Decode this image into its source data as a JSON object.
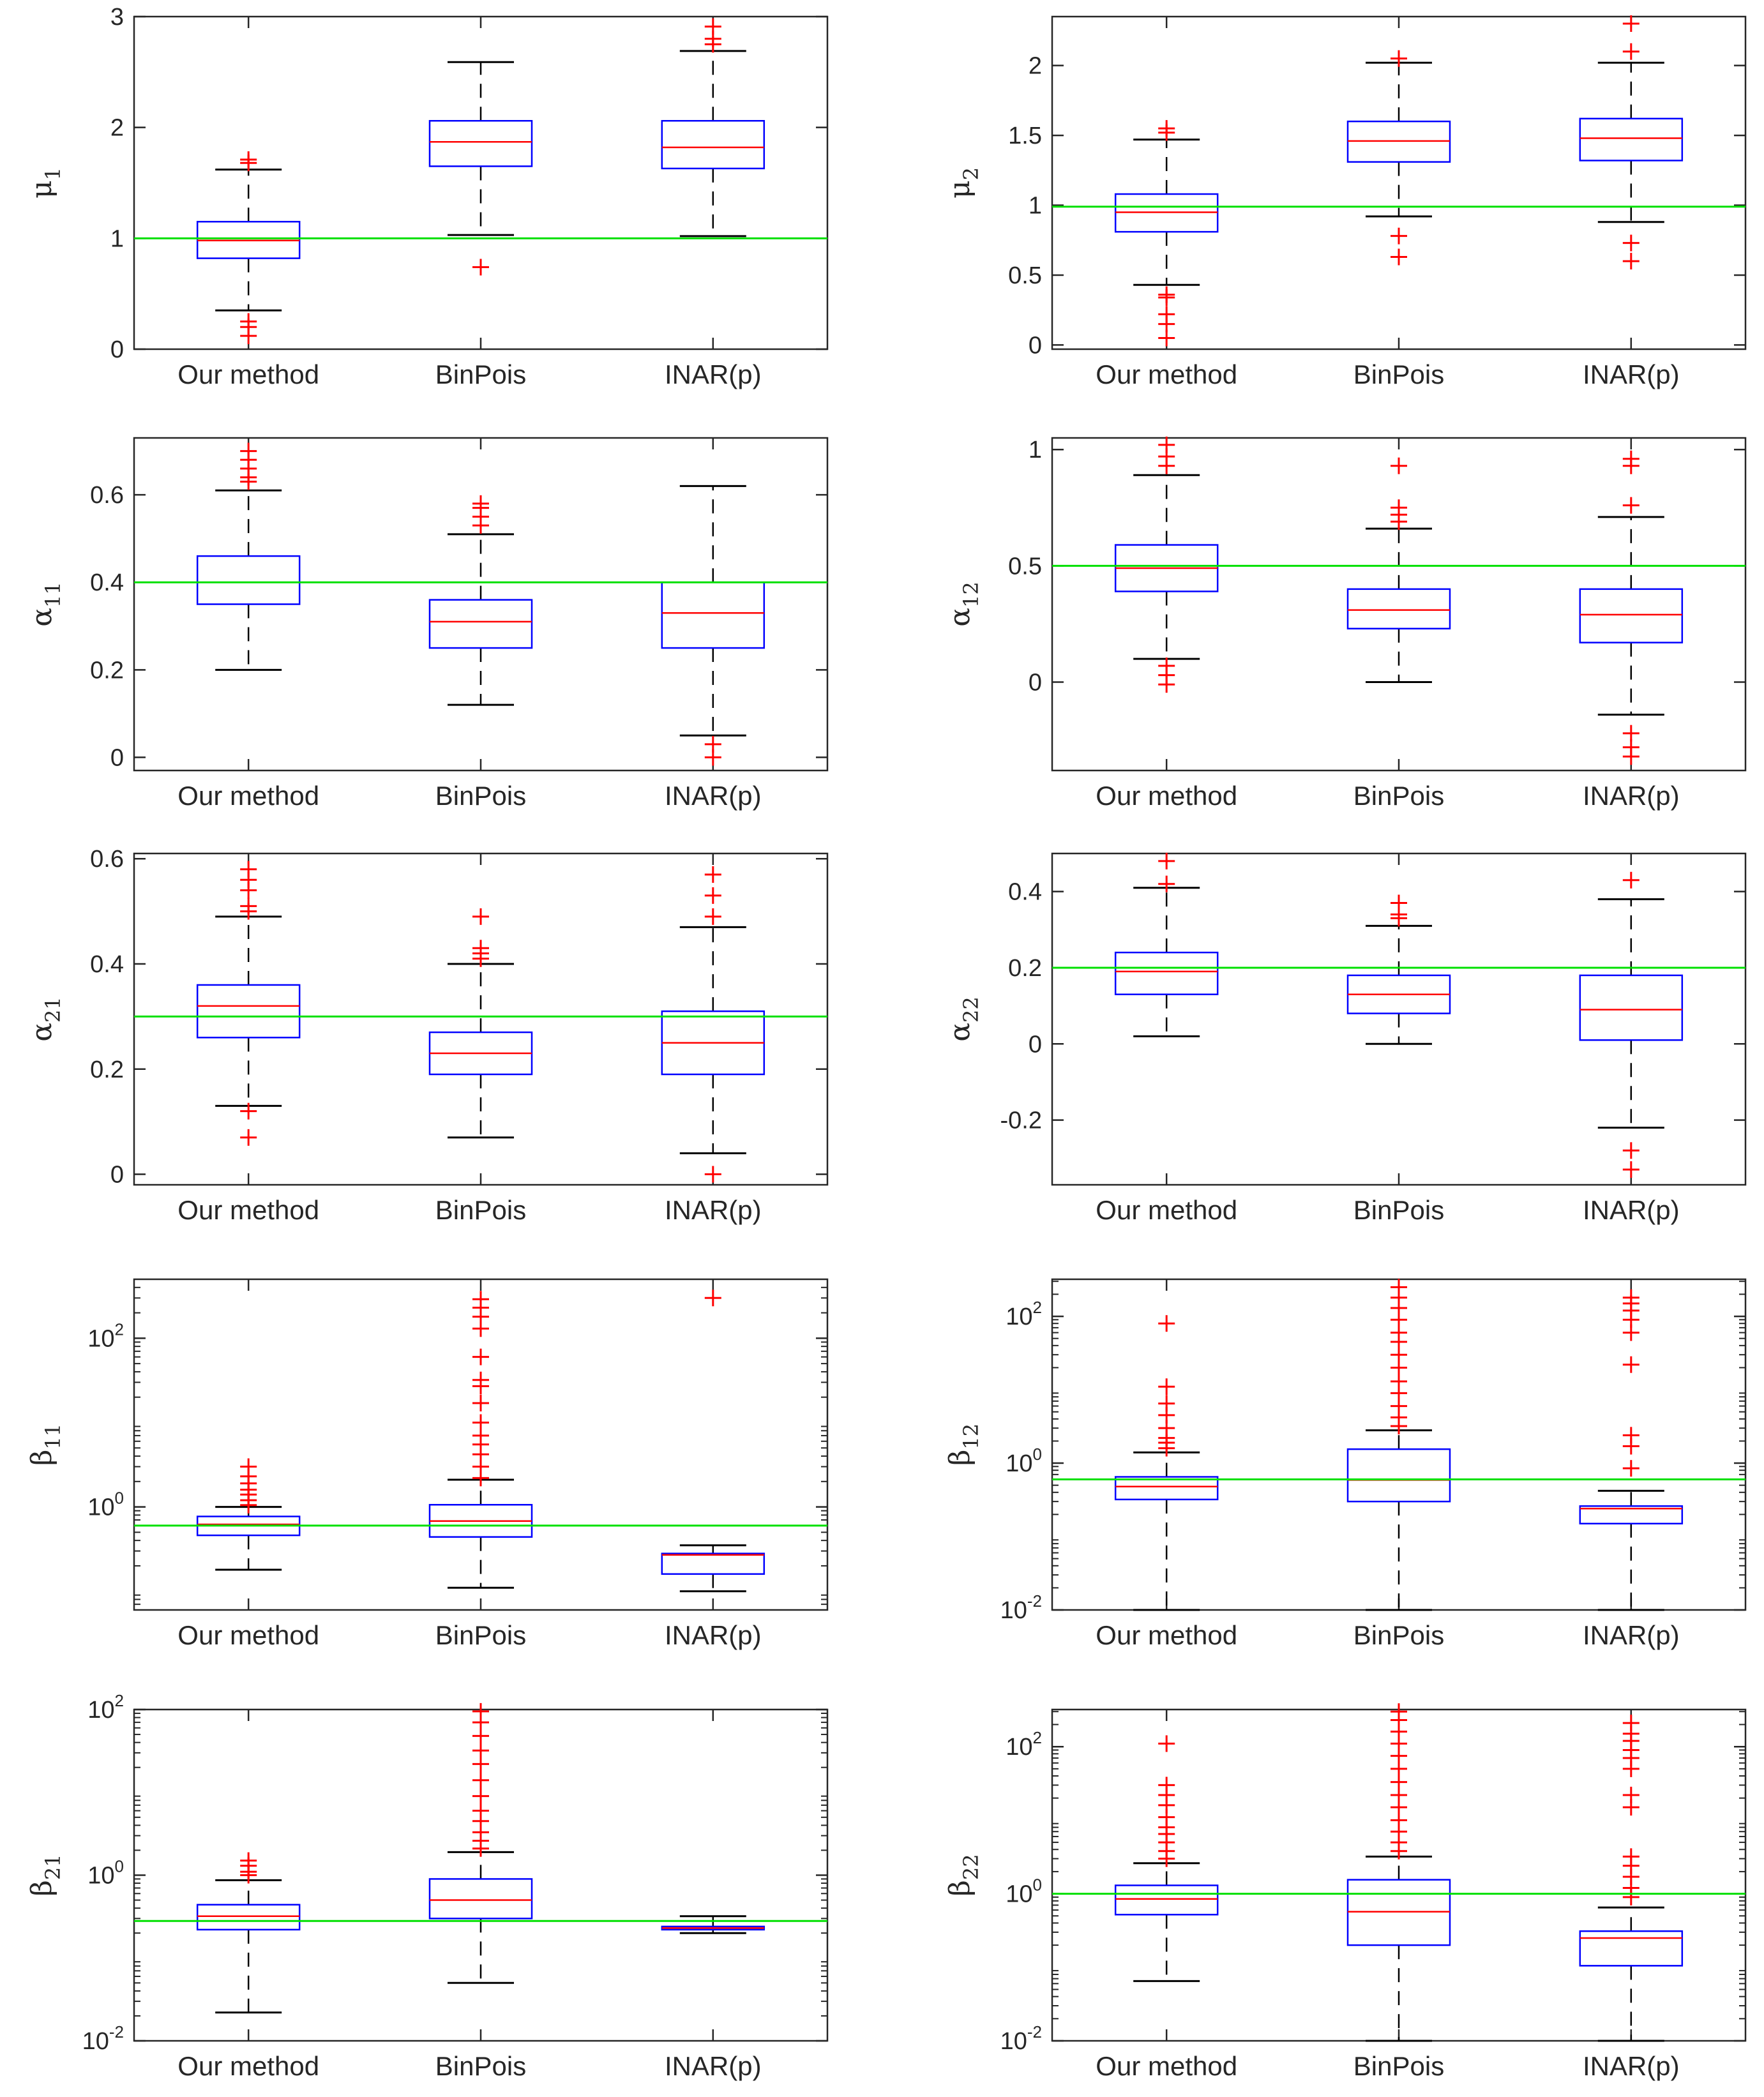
{
  "chart_data": [
    {
      "type": "boxplot",
      "ylabel": "μ",
      "ylabel_sub": "1",
      "scale": "linear",
      "ylim": [
        0,
        3
      ],
      "yticks": [
        {
          "v": 0,
          "t": "0"
        },
        {
          "v": 1,
          "t": "1"
        },
        {
          "v": 2,
          "t": "2"
        },
        {
          "v": 3,
          "t": "3"
        }
      ],
      "reference": 1,
      "categories": [
        "Our method",
        "BinPois",
        "INAR(p)"
      ],
      "boxes": [
        {
          "whisker_low": 0.35,
          "q1": 0.82,
          "median": 0.98,
          "q3": 1.15,
          "whisker_high": 1.62,
          "outliers": [
            0.12,
            0.2,
            0.25,
            1.68,
            1.71
          ]
        },
        {
          "whisker_low": 1.03,
          "q1": 1.65,
          "median": 1.87,
          "q3": 2.06,
          "whisker_high": 2.59,
          "outliers": [
            0.74
          ]
        },
        {
          "whisker_low": 1.02,
          "q1": 1.63,
          "median": 1.82,
          "q3": 2.06,
          "whisker_high": 2.69,
          "outliers": [
            2.75,
            2.8,
            2.91
          ]
        }
      ]
    },
    {
      "type": "boxplot",
      "ylabel": "μ",
      "ylabel_sub": "2",
      "scale": "linear",
      "ylim": [
        -0.03,
        2.35
      ],
      "yticks": [
        {
          "v": 0,
          "t": "0"
        },
        {
          "v": 0.5,
          "t": "0.5"
        },
        {
          "v": 1,
          "t": "1"
        },
        {
          "v": 1.5,
          "t": "1.5"
        },
        {
          "v": 2,
          "t": "2"
        }
      ],
      "reference": 0.99,
      "categories": [
        "Our method",
        "BinPois",
        "INAR(p)"
      ],
      "boxes": [
        {
          "whisker_low": 0.43,
          "q1": 0.81,
          "median": 0.95,
          "q3": 1.08,
          "whisker_high": 1.47,
          "outliers": [
            0.05,
            0.15,
            0.22,
            0.34,
            0.36,
            1.52,
            1.55
          ]
        },
        {
          "whisker_low": 0.92,
          "q1": 1.31,
          "median": 1.46,
          "q3": 1.6,
          "whisker_high": 2.02,
          "outliers": [
            0.63,
            0.78,
            2.05
          ]
        },
        {
          "whisker_low": 0.88,
          "q1": 1.32,
          "median": 1.48,
          "q3": 1.62,
          "whisker_high": 2.02,
          "outliers": [
            0.6,
            0.73,
            2.1,
            2.3
          ]
        }
      ]
    },
    {
      "type": "boxplot",
      "ylabel": "α",
      "ylabel_sub": "11",
      "scale": "linear",
      "ylim": [
        -0.03,
        0.73
      ],
      "yticks": [
        {
          "v": 0,
          "t": "0"
        },
        {
          "v": 0.2,
          "t": "0.2"
        },
        {
          "v": 0.4,
          "t": "0.4"
        },
        {
          "v": 0.6,
          "t": "0.6"
        }
      ],
      "reference": 0.4,
      "categories": [
        "Our method",
        "BinPois",
        "INAR(p)"
      ],
      "boxes": [
        {
          "whisker_low": 0.2,
          "q1": 0.35,
          "median": 0.4,
          "q3": 0.46,
          "whisker_high": 0.61,
          "outliers": [
            0.63,
            0.64,
            0.66,
            0.68,
            0.7
          ]
        },
        {
          "whisker_low": 0.12,
          "q1": 0.25,
          "median": 0.31,
          "q3": 0.36,
          "whisker_high": 0.51,
          "outliers": [
            0.53,
            0.55,
            0.57,
            0.58
          ]
        },
        {
          "whisker_low": 0.05,
          "q1": 0.25,
          "median": 0.33,
          "q3": 0.4,
          "whisker_high": 0.62,
          "outliers": [
            0.0,
            0.03
          ]
        }
      ]
    },
    {
      "type": "boxplot",
      "ylabel": "α",
      "ylabel_sub": "12",
      "scale": "linear",
      "ylim": [
        -0.38,
        1.05
      ],
      "yticks": [
        {
          "v": 0,
          "t": "0"
        },
        {
          "v": 0.5,
          "t": "0.5"
        },
        {
          "v": 1,
          "t": "1"
        }
      ],
      "reference": 0.5,
      "categories": [
        "Our method",
        "BinPois",
        "INAR(p)"
      ],
      "boxes": [
        {
          "whisker_low": 0.1,
          "q1": 0.39,
          "median": 0.49,
          "q3": 0.59,
          "whisker_high": 0.89,
          "outliers": [
            -0.01,
            0.03,
            0.07,
            0.93,
            0.97,
            1.02
          ]
        },
        {
          "whisker_low": 0.0,
          "q1": 0.23,
          "median": 0.31,
          "q3": 0.4,
          "whisker_high": 0.66,
          "outliers": [
            0.69,
            0.72,
            0.75,
            0.93
          ]
        },
        {
          "whisker_low": -0.14,
          "q1": 0.17,
          "median": 0.29,
          "q3": 0.4,
          "whisker_high": 0.71,
          "outliers": [
            -0.32,
            -0.28,
            -0.22,
            0.76,
            0.93,
            0.96
          ]
        }
      ]
    },
    {
      "type": "boxplot",
      "ylabel": "α",
      "ylabel_sub": "21",
      "scale": "linear",
      "ylim": [
        -0.02,
        0.61
      ],
      "yticks": [
        {
          "v": 0,
          "t": "0"
        },
        {
          "v": 0.2,
          "t": "0.2"
        },
        {
          "v": 0.4,
          "t": "0.4"
        },
        {
          "v": 0.6,
          "t": "0.6"
        }
      ],
      "reference": 0.3,
      "categories": [
        "Our method",
        "BinPois",
        "INAR(p)"
      ],
      "boxes": [
        {
          "whisker_low": 0.13,
          "q1": 0.26,
          "median": 0.32,
          "q3": 0.36,
          "whisker_high": 0.49,
          "outliers": [
            0.07,
            0.12,
            0.5,
            0.51,
            0.54,
            0.56,
            0.58
          ]
        },
        {
          "whisker_low": 0.07,
          "q1": 0.19,
          "median": 0.23,
          "q3": 0.27,
          "whisker_high": 0.4,
          "outliers": [
            0.41,
            0.42,
            0.43,
            0.49
          ]
        },
        {
          "whisker_low": 0.04,
          "q1": 0.19,
          "median": 0.25,
          "q3": 0.31,
          "whisker_high": 0.47,
          "outliers": [
            0.0,
            0.49,
            0.53,
            0.57
          ]
        }
      ]
    },
    {
      "type": "boxplot",
      "ylabel": "α",
      "ylabel_sub": "22",
      "scale": "linear",
      "ylim": [
        -0.37,
        0.5
      ],
      "yticks": [
        {
          "v": -0.2,
          "t": "-0.2"
        },
        {
          "v": 0,
          "t": "0"
        },
        {
          "v": 0.2,
          "t": "0.2"
        },
        {
          "v": 0.4,
          "t": "0.4"
        }
      ],
      "reference": 0.2,
      "categories": [
        "Our method",
        "BinPois",
        "INAR(p)"
      ],
      "boxes": [
        {
          "whisker_low": 0.02,
          "q1": 0.13,
          "median": 0.19,
          "q3": 0.24,
          "whisker_high": 0.41,
          "outliers": [
            0.42,
            0.48
          ]
        },
        {
          "whisker_low": 0.0,
          "q1": 0.08,
          "median": 0.13,
          "q3": 0.18,
          "whisker_high": 0.31,
          "outliers": [
            0.33,
            0.34,
            0.37
          ]
        },
        {
          "whisker_low": -0.22,
          "q1": 0.01,
          "median": 0.09,
          "q3": 0.18,
          "whisker_high": 0.38,
          "outliers": [
            -0.33,
            -0.28,
            0.43
          ]
        }
      ]
    },
    {
      "type": "boxplot",
      "ylabel": "β",
      "ylabel_sub": "11",
      "scale": "log",
      "ylim": [
        0.06,
        500
      ],
      "yticks": [
        {
          "v": 1,
          "base": "10",
          "exp": "0"
        },
        {
          "v": 100,
          "base": "10",
          "exp": "2"
        }
      ],
      "reference": 0.6,
      "categories": [
        "Our method",
        "BinPois",
        "INAR(p)"
      ],
      "boxes": [
        {
          "whisker_low": 0.18,
          "q1": 0.46,
          "median": 0.62,
          "q3": 0.77,
          "whisker_high": 1.0,
          "outliers": [
            1.05,
            1.2,
            1.4,
            1.6,
            1.9,
            2.3,
            3.0
          ]
        },
        {
          "whisker_low": 0.11,
          "q1": 0.44,
          "median": 0.68,
          "q3": 1.06,
          "whisker_high": 2.1,
          "outliers": [
            2.2,
            3.0,
            4.2,
            5.5,
            7.0,
            10,
            17,
            27,
            32,
            60,
            130,
            180,
            230,
            290
          ]
        },
        {
          "whisker_low": 0.1,
          "q1": 0.16,
          "median": 0.27,
          "q3": 0.28,
          "whisker_high": 0.35,
          "outliers": [
            300
          ]
        }
      ]
    },
    {
      "type": "boxplot",
      "ylabel": "β",
      "ylabel_sub": "12",
      "scale": "log",
      "ylim": [
        0.01,
        320
      ],
      "yticks": [
        {
          "v": 0.01,
          "base": "10",
          "exp": "-2"
        },
        {
          "v": 1,
          "base": "10",
          "exp": "0"
        },
        {
          "v": 100,
          "base": "10",
          "exp": "2"
        }
      ],
      "reference": 0.6,
      "categories": [
        "Our method",
        "BinPois",
        "INAR(p)"
      ],
      "boxes": [
        {
          "whisker_low": 0.01,
          "q1": 0.32,
          "median": 0.48,
          "q3": 0.65,
          "whisker_high": 1.4,
          "outliers": [
            1.6,
            1.9,
            2.2,
            3.0,
            4.5,
            6.5,
            11,
            80
          ]
        },
        {
          "whisker_low": 0.01,
          "q1": 0.3,
          "median": 0.59,
          "q3": 1.55,
          "whisker_high": 2.8,
          "outliers": [
            3.2,
            4.2,
            6,
            9,
            13,
            20,
            30,
            45,
            60,
            90,
            130,
            180,
            250
          ]
        },
        {
          "whisker_low": 0.01,
          "q1": 0.15,
          "median": 0.24,
          "q3": 0.26,
          "whisker_high": 0.42,
          "outliers": [
            0.85,
            1.7,
            2.4,
            22,
            60,
            90,
            120,
            150,
            180
          ]
        }
      ]
    },
    {
      "type": "boxplot",
      "ylabel": "β",
      "ylabel_sub": "21",
      "scale": "log",
      "ylim": [
        0.01,
        100
      ],
      "yticks": [
        {
          "v": 0.01,
          "base": "10",
          "exp": "-2"
        },
        {
          "v": 1,
          "base": "10",
          "exp": "0"
        },
        {
          "v": 100,
          "base": "10",
          "exp": "2"
        }
      ],
      "reference": 0.28,
      "categories": [
        "Our method",
        "BinPois",
        "INAR(p)"
      ],
      "boxes": [
        {
          "whisker_low": 0.022,
          "q1": 0.22,
          "median": 0.32,
          "q3": 0.44,
          "whisker_high": 0.87,
          "outliers": [
            1.0,
            1.1,
            1.3,
            1.5
          ]
        },
        {
          "whisker_low": 0.05,
          "q1": 0.3,
          "median": 0.5,
          "q3": 0.9,
          "whisker_high": 1.9,
          "outliers": [
            2.1,
            2.6,
            3.3,
            4.5,
            6,
            9,
            14,
            22,
            32,
            48,
            70,
            95
          ]
        },
        {
          "whisker_low": 0.2,
          "q1": 0.22,
          "median": 0.23,
          "q3": 0.24,
          "whisker_high": 0.32,
          "outliers": []
        }
      ]
    },
    {
      "type": "boxplot",
      "ylabel": "β",
      "ylabel_sub": "22",
      "scale": "log",
      "ylim": [
        0.01,
        320
      ],
      "yticks": [
        {
          "v": 0.01,
          "base": "10",
          "exp": "-2"
        },
        {
          "v": 1,
          "base": "10",
          "exp": "0"
        },
        {
          "v": 100,
          "base": "10",
          "exp": "2"
        }
      ],
      "reference": 1.0,
      "categories": [
        "Our method",
        "BinPois",
        "INAR(p)"
      ],
      "boxes": [
        {
          "whisker_low": 0.065,
          "q1": 0.52,
          "median": 0.85,
          "q3": 1.3,
          "whisker_high": 2.6,
          "outliers": [
            3,
            3.8,
            5,
            6.5,
            8,
            11,
            16,
            22,
            30,
            110
          ]
        },
        {
          "whisker_low": 0.01,
          "q1": 0.2,
          "median": 0.57,
          "q3": 1.55,
          "whisker_high": 3.2,
          "outliers": [
            3.8,
            5,
            7,
            10,
            15,
            22,
            33,
            50,
            75,
            110,
            160,
            230,
            300
          ]
        },
        {
          "whisker_low": 0.01,
          "q1": 0.105,
          "median": 0.25,
          "q3": 0.31,
          "whisker_high": 0.65,
          "outliers": [
            0.9,
            1.2,
            1.7,
            2.4,
            3.2,
            15,
            22,
            50,
            70,
            90,
            120,
            150,
            210
          ]
        }
      ]
    }
  ]
}
